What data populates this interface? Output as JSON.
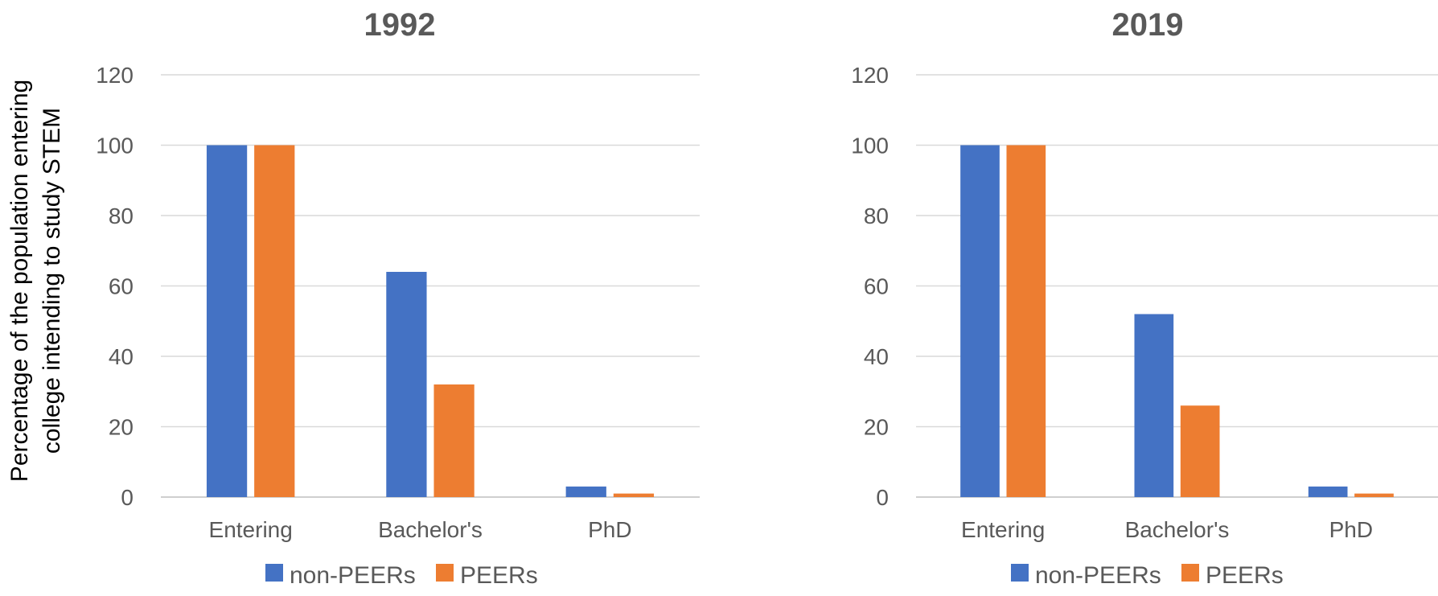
{
  "chart_data": [
    {
      "type": "bar",
      "title": "1992",
      "ylabel": "Percentage of the population entering college intending to study STEM",
      "ylabel_lines": [
        "Percentage of the population entering",
        "college intending to study STEM"
      ],
      "categories": [
        "Entering",
        "Bachelor's",
        "PhD"
      ],
      "ylim": [
        0,
        120
      ],
      "yticks": [
        0,
        20,
        40,
        60,
        80,
        100,
        120
      ],
      "grid": true,
      "legend": "bottom",
      "series": [
        {
          "name": "non-PEERs",
          "color": "#4472C4",
          "values": [
            100,
            64,
            3
          ]
        },
        {
          "name": "PEERs",
          "color": "#ED7D31",
          "values": [
            100,
            32,
            1
          ]
        }
      ]
    },
    {
      "type": "bar",
      "title": "2019",
      "categories": [
        "Entering",
        "Bachelor's",
        "PhD"
      ],
      "ylim": [
        0,
        120
      ],
      "yticks": [
        0,
        20,
        40,
        60,
        80,
        100,
        120
      ],
      "grid": true,
      "legend": "bottom",
      "series": [
        {
          "name": "non-PEERs",
          "color": "#4472C4",
          "values": [
            100,
            52,
            3
          ]
        },
        {
          "name": "PEERs",
          "color": "#ED7D31",
          "values": [
            100,
            26,
            1
          ]
        }
      ]
    }
  ]
}
